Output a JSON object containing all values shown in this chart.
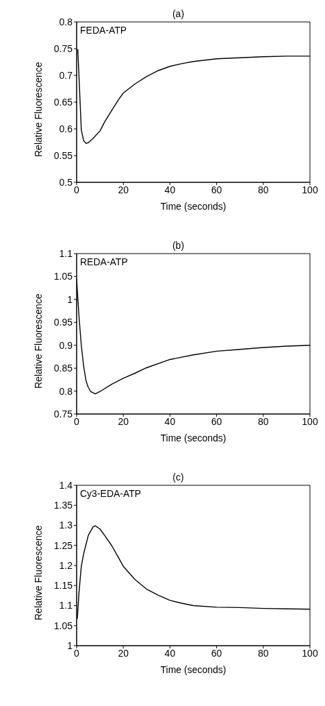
{
  "chart_data": [
    {
      "type": "line",
      "title": "(a)",
      "xlabel": "Time  (seconds)",
      "ylabel": "Relative  Fluorescence",
      "annotations": [
        "FEDA-ATP"
      ],
      "xlim": [
        0,
        100
      ],
      "xticks": [
        0,
        20,
        40,
        60,
        80,
        100
      ],
      "ylim": [
        0.5,
        0.8
      ],
      "yticks": [
        0.5,
        0.55,
        0.6,
        0.65,
        0.7,
        0.75,
        0.8
      ],
      "grid": false,
      "legend": false,
      "marker": "none",
      "line_style": "solid",
      "series": [
        {
          "color": "#000000",
          "x": [
            0.5,
            1,
            2,
            3,
            4,
            5,
            7,
            10,
            12,
            15,
            18,
            20,
            25,
            30,
            35,
            40,
            45,
            50,
            60,
            70,
            80,
            90,
            100
          ],
          "values": [
            0.749,
            0.7,
            0.598,
            0.578,
            0.573,
            0.574,
            0.582,
            0.596,
            0.613,
            0.634,
            0.655,
            0.667,
            0.684,
            0.698,
            0.709,
            0.717,
            0.722,
            0.726,
            0.731,
            0.733,
            0.735,
            0.736,
            0.736
          ]
        }
      ]
    },
    {
      "type": "line",
      "title": "(b)",
      "xlabel": "Time  (seconds)",
      "ylabel": "Relative  Fluorescence",
      "annotations": [
        "REDA-ATP"
      ],
      "xlim": [
        0,
        100
      ],
      "xticks": [
        0,
        20,
        40,
        60,
        80,
        100
      ],
      "ylim": [
        0.75,
        1.1
      ],
      "yticks": [
        0.75,
        0.8,
        0.85,
        0.9,
        0.95,
        1,
        1.05,
        1.1
      ],
      "grid": false,
      "legend": false,
      "marker": "none",
      "line_style": "solid",
      "series": [
        {
          "color": "#000000",
          "x": [
            0,
            0.5,
            1,
            2,
            3,
            4,
            5,
            6,
            8,
            10,
            15,
            20,
            25,
            30,
            40,
            50,
            60,
            70,
            80,
            90,
            100
          ],
          "values": [
            1.045,
            1.004,
            0.964,
            0.9,
            0.855,
            0.823,
            0.808,
            0.799,
            0.794,
            0.799,
            0.815,
            0.828,
            0.839,
            0.851,
            0.869,
            0.879,
            0.887,
            0.891,
            0.895,
            0.898,
            0.9
          ]
        }
      ]
    },
    {
      "type": "line",
      "title": "(c)",
      "xlabel": "Time  (seconds)",
      "ylabel": "Relative  Fluorescence",
      "annotations": [
        "Cy3-EDA-ATP"
      ],
      "xlim": [
        0,
        100
      ],
      "xticks": [
        0,
        20,
        40,
        60,
        80,
        100
      ],
      "ylim": [
        1,
        1.4
      ],
      "yticks": [
        1,
        1.05,
        1.1,
        1.15,
        1.2,
        1.25,
        1.3,
        1.35,
        1.4
      ],
      "grid": false,
      "legend": false,
      "marker": "none",
      "line_style": "solid",
      "series": [
        {
          "color": "#000000",
          "x": [
            0.3,
            1,
            2,
            3,
            5,
            7,
            8,
            10,
            12,
            15,
            18,
            20,
            25,
            30,
            35,
            40,
            45,
            50,
            60,
            70,
            80,
            90,
            100
          ],
          "values": [
            1.067,
            1.131,
            1.198,
            1.229,
            1.275,
            1.296,
            1.299,
            1.291,
            1.275,
            1.25,
            1.219,
            1.198,
            1.165,
            1.141,
            1.126,
            1.113,
            1.106,
            1.1,
            1.096,
            1.095,
            1.093,
            1.092,
            1.091
          ]
        }
      ]
    }
  ]
}
